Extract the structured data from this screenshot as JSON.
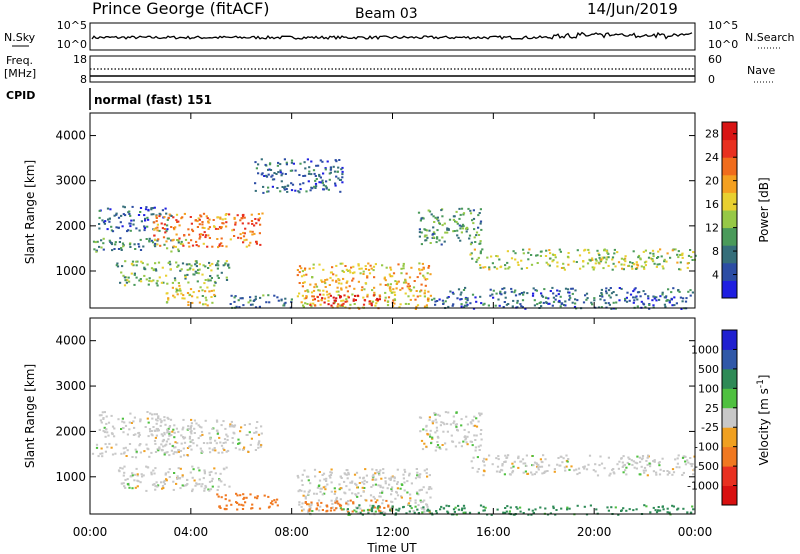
{
  "header": {
    "station": "Prince George (fitACF)",
    "beam": "Beam 03",
    "date": "14/Jun/2019"
  },
  "noise_panel": {
    "left_label": "N.Sky",
    "left_ticks": [
      "10^5",
      "10^0"
    ],
    "right_ticks": [
      "10^5",
      "10^0"
    ],
    "right_label": "N.Search"
  },
  "freq_panel": {
    "left_label_1": "Freq.",
    "left_label_2": "[MHz]",
    "left_ticks": [
      "18",
      "8"
    ],
    "right_ticks": [
      "60",
      "0"
    ],
    "right_label": "Nave",
    "cpid_label": "CPID",
    "cpid_value": "normal (fast) 151"
  },
  "x_axis": {
    "ticks": [
      "00:00",
      "04:00",
      "08:00",
      "12:00",
      "16:00",
      "20:00",
      "00:00"
    ],
    "title": "Time UT"
  },
  "chart_data": [
    {
      "type": "heatmap",
      "quantity": "Power",
      "ylabel": "Slant Range [km]",
      "yticks": [
        "1000",
        "2000",
        "3000",
        "4000"
      ],
      "ylim": [
        180,
        4500
      ],
      "xlim_hours": [
        0,
        24
      ],
      "colorbar": {
        "label": "Power [dB]",
        "ticks": [
          "4",
          "8",
          "12",
          "16",
          "20",
          "24",
          "28"
        ],
        "range": [
          0,
          30
        ],
        "colors": [
          "#1f1fe0",
          "#2c4da4",
          "#356e7a",
          "#4a9a5a",
          "#96c846",
          "#e8d030",
          "#f4a020",
          "#f06c1c",
          "#e83020",
          "#d81414"
        ]
      },
      "regions": [
        {
          "t": [
            0.0,
            4.0
          ],
          "range": [
            1450,
            1750
          ],
          "power": 9
        },
        {
          "t": [
            0.3,
            3.2
          ],
          "range": [
            1900,
            2450
          ],
          "power": 6
        },
        {
          "t": [
            2.5,
            6.8
          ],
          "range": [
            1550,
            2300
          ],
          "power": 22
        },
        {
          "t": [
            1.0,
            5.5
          ],
          "range": [
            700,
            1250
          ],
          "power": 12
        },
        {
          "t": [
            3.0,
            5.0
          ],
          "range": [
            250,
            700
          ],
          "power": 16
        },
        {
          "t": [
            5.5,
            8.0
          ],
          "range": [
            180,
            500
          ],
          "power": 8
        },
        {
          "t": [
            6.5,
            10.0
          ],
          "range": [
            2750,
            3500
          ],
          "power": 6
        },
        {
          "t": [
            8.2,
            13.5
          ],
          "range": [
            180,
            1200
          ],
          "power": 18
        },
        {
          "t": [
            8.5,
            11.5
          ],
          "range": [
            250,
            500
          ],
          "power": 28
        },
        {
          "t": [
            13.0,
            15.5
          ],
          "range": [
            1600,
            2450
          ],
          "power": 10
        },
        {
          "t": [
            15.0,
            24.0
          ],
          "range": [
            1050,
            1500
          ],
          "power": 14
        },
        {
          "t": [
            13.5,
            24.0
          ],
          "range": [
            180,
            650
          ],
          "power": 6
        }
      ]
    },
    {
      "type": "heatmap",
      "quantity": "Velocity",
      "ylabel": "Slant Range [km]",
      "yticks": [
        "1000",
        "2000",
        "3000",
        "4000"
      ],
      "ylim": [
        180,
        4500
      ],
      "xlim_hours": [
        0,
        24
      ],
      "colorbar": {
        "label": "Velocity [m s^-1]",
        "ticks": [
          "1000",
          "500",
          "100",
          "25",
          "-25",
          "-100",
          "-500",
          "-1000"
        ],
        "colors": [
          "#2020d0",
          "#3058a8",
          "#2e8a56",
          "#4fc040",
          "#c8c8c8",
          "#f0a020",
          "#f07820",
          "#e83020",
          "#d81010"
        ]
      },
      "regions": [
        {
          "t": [
            0.0,
            4.0
          ],
          "range": [
            1450,
            1750
          ],
          "velocity": 0
        },
        {
          "t": [
            0.3,
            3.2
          ],
          "range": [
            1900,
            2450
          ],
          "velocity": 0
        },
        {
          "t": [
            2.5,
            6.8
          ],
          "range": [
            1550,
            2300
          ],
          "velocity": 0
        },
        {
          "t": [
            1.0,
            5.5
          ],
          "range": [
            700,
            1250
          ],
          "velocity": 0
        },
        {
          "t": [
            5.0,
            7.5
          ],
          "range": [
            300,
            650
          ],
          "velocity": -300
        },
        {
          "t": [
            8.2,
            13.5
          ],
          "range": [
            180,
            1200
          ],
          "velocity": 0
        },
        {
          "t": [
            8.5,
            12.0
          ],
          "range": [
            250,
            500
          ],
          "velocity": -200
        },
        {
          "t": [
            10.0,
            24.0
          ],
          "range": [
            180,
            400
          ],
          "velocity": 60
        },
        {
          "t": [
            13.0,
            15.5
          ],
          "range": [
            1600,
            2450
          ],
          "velocity": 0
        },
        {
          "t": [
            15.0,
            24.0
          ],
          "range": [
            1050,
            1500
          ],
          "velocity": 0
        }
      ]
    }
  ]
}
